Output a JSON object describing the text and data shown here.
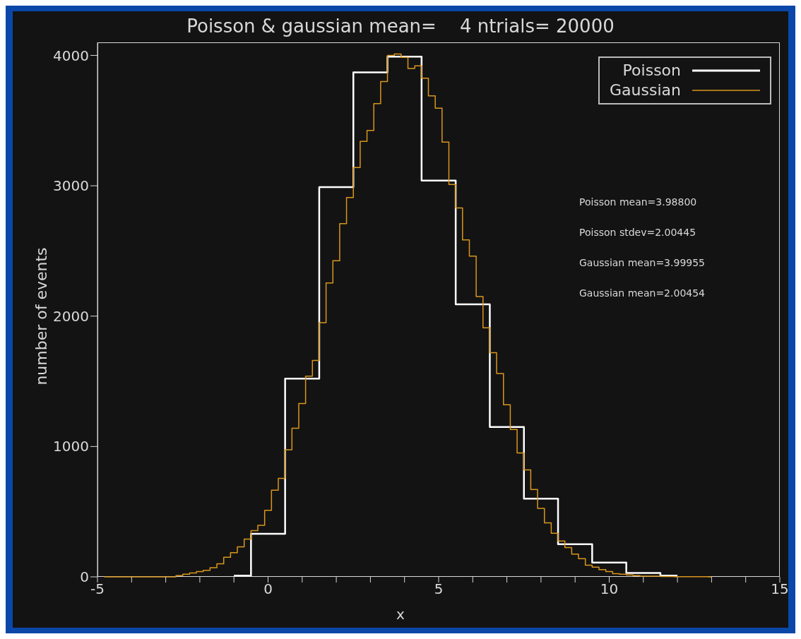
{
  "chart_data": {
    "type": "step",
    "title": "Poisson & gaussian mean=    4 ntrials= 20000",
    "xlabel": "x",
    "ylabel": "number of events",
    "xlim": [
      -5,
      15
    ],
    "xticks": [
      -5,
      {
        "value": -4,
        "label": null
      },
      {
        "value": -3,
        "label": null
      },
      {
        "value": -2,
        "label": null
      },
      {
        "value": -1,
        "label": null
      },
      0,
      {
        "value": 1,
        "label": null
      },
      {
        "value": 2,
        "label": null
      },
      {
        "value": 3,
        "label": null
      },
      {
        "value": 4,
        "label": null
      },
      5,
      {
        "value": 6,
        "label": null
      },
      {
        "value": 7,
        "label": null
      },
      {
        "value": 8,
        "label": null
      },
      {
        "value": 9,
        "label": null
      },
      10,
      {
        "value": 11,
        "label": null
      },
      {
        "value": 12,
        "label": null
      },
      {
        "value": 13,
        "label": null
      },
      {
        "value": 14,
        "label": null
      },
      15
    ],
    "ylim": [
      0,
      4100
    ],
    "yticks": [
      0,
      1000,
      2000,
      3000,
      4000
    ],
    "legend": "top right",
    "series": [
      {
        "name": "Poisson",
        "color": "#ffffff",
        "x": [
          -1,
          0,
          1,
          2,
          3,
          4,
          5,
          6,
          7,
          8,
          9,
          10,
          11,
          12
        ],
        "values": [
          10,
          330,
          1520,
          2990,
          3870,
          3990,
          3040,
          2090,
          1150,
          600,
          250,
          110,
          30,
          10
        ]
      },
      {
        "name": "Gaussian",
        "color": "#d9961e",
        "x": [
          -4.8,
          -4.6,
          -4.4,
          -4.2,
          -4.0,
          -3.8,
          -3.6,
          -3.4,
          -3.2,
          -3.0,
          -2.8,
          -2.6,
          -2.4,
          -2.2,
          -2.0,
          -1.8,
          -1.6,
          -1.4,
          -1.2,
          -1.0,
          -0.8,
          -0.6,
          -0.4,
          -0.2,
          0.0,
          0.2,
          0.4,
          0.6,
          0.8,
          1.0,
          1.2,
          1.4,
          1.6,
          1.8,
          2.0,
          2.2,
          2.4,
          2.6,
          2.8,
          3.0,
          3.2,
          3.4,
          3.6,
          3.8,
          4.0,
          4.2,
          4.4,
          4.6,
          4.8,
          5.0,
          5.2,
          5.4,
          5.6,
          5.8,
          6.0,
          6.2,
          6.4,
          6.6,
          6.8,
          7.0,
          7.2,
          7.4,
          7.6,
          7.8,
          8.0,
          8.2,
          8.4,
          8.6,
          8.8,
          9.0,
          9.2,
          9.4,
          9.6,
          9.8,
          10.0,
          10.2,
          10.4,
          10.6,
          10.8,
          11.0,
          11.2,
          11.4,
          11.6,
          11.8,
          12.0,
          12.2,
          12.4,
          12.6,
          12.8,
          13.0
        ],
        "values": [
          0,
          0,
          0,
          0,
          0,
          0,
          0,
          0,
          0,
          0,
          0,
          10,
          20,
          30,
          40,
          50,
          70,
          100,
          150,
          185,
          230,
          290,
          355,
          395,
          510,
          665,
          755,
          975,
          1140,
          1330,
          1540,
          1660,
          1950,
          2255,
          2425,
          2710,
          2910,
          3140,
          3340,
          3425,
          3630,
          3800,
          4000,
          4010,
          3985,
          3900,
          3920,
          3825,
          3690,
          3595,
          3335,
          3010,
          2830,
          2585,
          2460,
          2150,
          1910,
          1720,
          1560,
          1320,
          1130,
          950,
          820,
          670,
          525,
          415,
          335,
          275,
          225,
          175,
          140,
          90,
          75,
          55,
          40,
          25,
          20,
          15,
          10,
          5,
          5,
          5,
          3,
          3,
          2,
          2,
          1,
          1,
          1,
          0
        ]
      }
    ],
    "annotations": [
      "Poisson mean=3.98800",
      "Poisson stdev=2.00445",
      "Gaussian mean=3.99955",
      "Gaussian mean=2.00454"
    ]
  }
}
